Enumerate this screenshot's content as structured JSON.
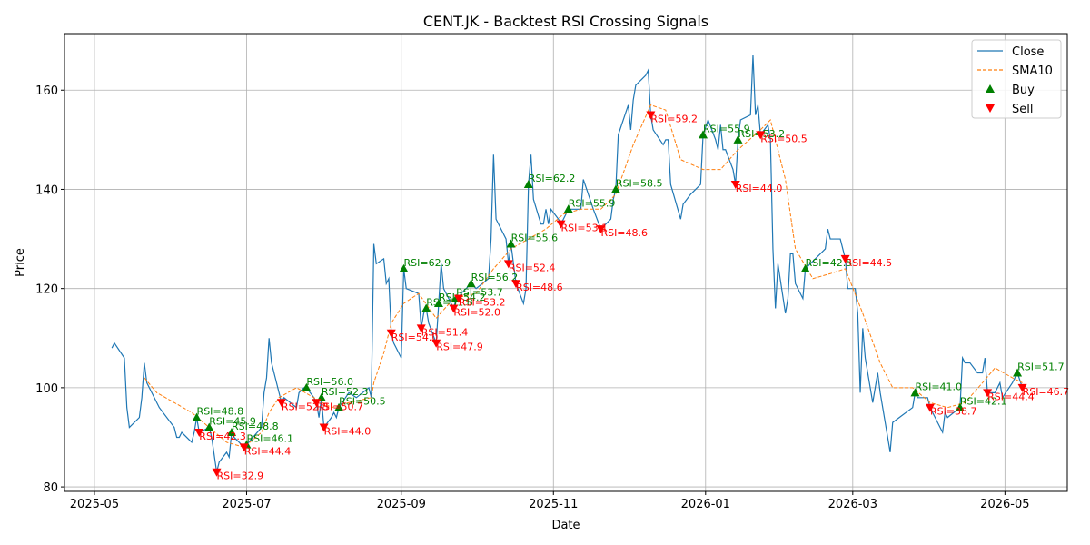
{
  "chart_data": {
    "type": "line",
    "title": "CENT.JK - Backtest RSI Crossing Signals",
    "x_label": "Date",
    "y_label": "Price",
    "xlim": [
      "2025-04-19",
      "2026-05-26"
    ],
    "xticks": [
      "2025-05",
      "2025-07",
      "2025-09",
      "2025-11",
      "2026-01",
      "2026-03",
      "2026-05"
    ],
    "ylim": [
      79.1,
      171.4
    ],
    "yticks": [
      80,
      100,
      120,
      140,
      160
    ],
    "grid": true,
    "legend": "upper right",
    "series": [
      {
        "name": "Close",
        "color": "#1f77b4",
        "style": "solid",
        "x": [
          "2025-05-08",
          "2025-05-09",
          "2025-05-13",
          "2025-05-14",
          "2025-05-15",
          "2025-05-19",
          "2025-05-20",
          "2025-05-21",
          "2025-05-22",
          "2025-05-27",
          "2025-06-02",
          "2025-06-03",
          "2025-06-04",
          "2025-06-05",
          "2025-06-09",
          "2025-06-10",
          "2025-06-11",
          "2025-06-12",
          "2025-06-16",
          "2025-06-17",
          "2025-06-19",
          "2025-06-20",
          "2025-06-23",
          "2025-06-24",
          "2025-06-25",
          "2025-06-26",
          "2025-06-30",
          "2025-07-01",
          "2025-07-07",
          "2025-07-08",
          "2025-07-09",
          "2025-07-10",
          "2025-07-11",
          "2025-07-14",
          "2025-07-15",
          "2025-07-16",
          "2025-07-21",
          "2025-07-22",
          "2025-07-24",
          "2025-07-25",
          "2025-07-28",
          "2025-07-29",
          "2025-07-30",
          "2025-07-31",
          "2025-08-01",
          "2025-08-04",
          "2025-08-05",
          "2025-08-06",
          "2025-08-07",
          "2025-08-11",
          "2025-08-14",
          "2025-08-19",
          "2025-08-20",
          "2025-08-21",
          "2025-08-22",
          "2025-08-25",
          "2025-08-26",
          "2025-08-27",
          "2025-08-28",
          "2025-08-29",
          "2025-09-01",
          "2025-09-02",
          "2025-09-03",
          "2025-09-08",
          "2025-09-09",
          "2025-09-10",
          "2025-09-11",
          "2025-09-12",
          "2025-09-15",
          "2025-09-16",
          "2025-09-17",
          "2025-09-18",
          "2025-09-19",
          "2025-09-22",
          "2025-09-23",
          "2025-09-24",
          "2025-09-25",
          "2025-09-29",
          "2025-10-01",
          "2025-10-06",
          "2025-10-07",
          "2025-10-08",
          "2025-10-09",
          "2025-10-13",
          "2025-10-14",
          "2025-10-15",
          "2025-10-17",
          "2025-10-20",
          "2025-10-21",
          "2025-10-22",
          "2025-10-23",
          "2025-10-24",
          "2025-10-27",
          "2025-10-28",
          "2025-10-29",
          "2025-10-30",
          "2025-10-31",
          "2025-11-03",
          "2025-11-04",
          "2025-11-05",
          "2025-11-07",
          "2025-11-11",
          "2025-11-12",
          "2025-11-13",
          "2025-11-17",
          "2025-11-20",
          "2025-11-24",
          "2025-11-25",
          "2025-11-26",
          "2025-11-27",
          "2025-12-01",
          "2025-12-02",
          "2025-12-03",
          "2025-12-04",
          "2025-12-08",
          "2025-12-09",
          "2025-12-10",
          "2025-12-11",
          "2025-12-15",
          "2025-12-16",
          "2025-12-17",
          "2025-12-18",
          "2025-12-22",
          "2025-12-23",
          "2025-12-26",
          "2025-12-30",
          "2025-12-31",
          "2026-01-02",
          "2026-01-05",
          "2026-01-06",
          "2026-01-07",
          "2026-01-08",
          "2026-01-09",
          "2026-01-12",
          "2026-01-13",
          "2026-01-14",
          "2026-01-15",
          "2026-01-19",
          "2026-01-20",
          "2026-01-21",
          "2026-01-22",
          "2026-01-23",
          "2026-01-26",
          "2026-01-27",
          "2026-01-28",
          "2026-01-29",
          "2026-01-30",
          "2026-02-02",
          "2026-02-03",
          "2026-02-04",
          "2026-02-05",
          "2026-02-06",
          "2026-02-09",
          "2026-02-10",
          "2026-02-16",
          "2026-02-18",
          "2026-02-19",
          "2026-02-20",
          "2026-02-24",
          "2026-02-26",
          "2026-02-27",
          "2026-03-02",
          "2026-03-03",
          "2026-03-04",
          "2026-03-05",
          "2026-03-06",
          "2026-03-09",
          "2026-03-11",
          "2026-03-12",
          "2026-03-16",
          "2026-03-17",
          "2026-03-25",
          "2026-03-26",
          "2026-03-27",
          "2026-03-31",
          "2026-04-01",
          "2026-04-06",
          "2026-04-07",
          "2026-04-08",
          "2026-04-13",
          "2026-04-14",
          "2026-04-15",
          "2026-04-17",
          "2026-04-20",
          "2026-04-22",
          "2026-04-23",
          "2026-04-24",
          "2026-04-27",
          "2026-04-29",
          "2026-04-30",
          "2026-05-04",
          "2026-05-06",
          "2026-05-08"
        ],
        "values": [
          108,
          109,
          106,
          96,
          92,
          94,
          98,
          105,
          101,
          96,
          92,
          90,
          90,
          91,
          89,
          91,
          94,
          91,
          92,
          90,
          83,
          85,
          87,
          86,
          91,
          90,
          88,
          88.5,
          92,
          99,
          102,
          110,
          105,
          99,
          97,
          98,
          96,
          99,
          100,
          100,
          98,
          97,
          94,
          98,
          92,
          94,
          95,
          94,
          96,
          99,
          98,
          100,
          98,
          129,
          125,
          126,
          121,
          122,
          111,
          109,
          106,
          124,
          120,
          119,
          112,
          115,
          116,
          113,
          109,
          117,
          125,
          120,
          119,
          116,
          118,
          118,
          119,
          121,
          120,
          122,
          130,
          147,
          134,
          130,
          125,
          129,
          121,
          117,
          120,
          141,
          147,
          138,
          133,
          133,
          136,
          133,
          136,
          134,
          133,
          134,
          136,
          136,
          136,
          142,
          136,
          132,
          134,
          138,
          140,
          151,
          157,
          152,
          158,
          161,
          163,
          164,
          155,
          152,
          149,
          150,
          150,
          141,
          134,
          137,
          139,
          141,
          151,
          154,
          150,
          148,
          153,
          148,
          148,
          144,
          141,
          150,
          154,
          155,
          167,
          155,
          157,
          151,
          153,
          150,
          128,
          116,
          125,
          115,
          118,
          127,
          127,
          121,
          118,
          124,
          127,
          128,
          132,
          130,
          130,
          126,
          120,
          120,
          115,
          99,
          112,
          106,
          97,
          103,
          99,
          87,
          93,
          96,
          99,
          98,
          98,
          96,
          91,
          95,
          94,
          96,
          106,
          105,
          105,
          103,
          103,
          106,
          99,
          99,
          101,
          98,
          101,
          103,
          100
        ]
      },
      {
        "name": "SMA10",
        "color": "#ff7f0e",
        "style": "dashed",
        "x": [
          "2025-05-21",
          "2025-05-26",
          "2025-06-02",
          "2025-06-09",
          "2025-06-16",
          "2025-06-23",
          "2025-06-30",
          "2025-07-07",
          "2025-07-10",
          "2025-07-14",
          "2025-07-21",
          "2025-07-28",
          "2025-08-04",
          "2025-08-11",
          "2025-08-20",
          "2025-08-21",
          "2025-08-25",
          "2025-08-28",
          "2025-09-02",
          "2025-09-08",
          "2025-09-15",
          "2025-09-22",
          "2025-10-01",
          "2025-10-08",
          "2025-10-15",
          "2025-10-22",
          "2025-10-29",
          "2025-11-05",
          "2025-11-12",
          "2025-11-20",
          "2025-11-26",
          "2025-12-03",
          "2025-12-10",
          "2025-12-16",
          "2025-12-22",
          "2025-12-31",
          "2026-01-07",
          "2026-01-14",
          "2026-01-23",
          "2026-01-27",
          "2026-02-02",
          "2026-02-06",
          "2026-02-13",
          "2026-02-20",
          "2026-02-26",
          "2026-03-05",
          "2026-03-12",
          "2026-03-17",
          "2026-03-25",
          "2026-04-01",
          "2026-04-08",
          "2026-04-15",
          "2026-04-22",
          "2026-04-27",
          "2026-05-04",
          "2026-05-08"
        ],
        "values": [
          102,
          99,
          97,
          95,
          92,
          89,
          88,
          91,
          95,
          98,
          100,
          98,
          96,
          97,
          98,
          101,
          107,
          113,
          117,
          119,
          114,
          118,
          119,
          124,
          128,
          130,
          132,
          135,
          136,
          136,
          139,
          149,
          157,
          156,
          146,
          144,
          144,
          148,
          152,
          154,
          142,
          128,
          122,
          123,
          124,
          115,
          105,
          100,
          100,
          97,
          96,
          97,
          101,
          104,
          102,
          101
        ]
      },
      {
        "name": "Buy",
        "color": "#008000",
        "marker": "up",
        "x": [
          "2025-06-11",
          "2025-06-16",
          "2025-06-25",
          "2025-07-01",
          "2025-07-25",
          "2025-07-31",
          "2025-08-07",
          "2025-09-02",
          "2025-09-11",
          "2025-09-16",
          "2025-09-23",
          "2025-09-29",
          "2025-10-15",
          "2025-10-22",
          "2025-11-07",
          "2025-11-26",
          "2025-12-31",
          "2026-01-14",
          "2026-02-10",
          "2026-03-26",
          "2026-04-13",
          "2026-05-06"
        ],
        "values": [
          94,
          92,
          91,
          88.5,
          100,
          98,
          96,
          124,
          116,
          117,
          118,
          121,
          129,
          141,
          136,
          140,
          151,
          150,
          124,
          99,
          96,
          103
        ],
        "labels": [
          "RSI=48.8",
          "RSI=45.9",
          "RSI=48.8",
          "RSI=46.1",
          "RSI=56.0",
          "RSI=52.3",
          "RSI=50.5",
          "RSI=62.9",
          "RSI=51.8",
          "RSI=54.2",
          "RSI=53.7",
          "RSI=56.2",
          "RSI=55.6",
          "RSI=62.2",
          "RSI=55.9",
          "RSI=58.5",
          "RSI=55.9",
          "RSI=53.2",
          "RSI=42.5",
          "RSI=41.0",
          "RSI=42.1",
          "RSI=51.7"
        ]
      },
      {
        "name": "Sell",
        "color": "#ff0000",
        "marker": "down",
        "x": [
          "2025-06-12",
          "2025-06-19",
          "2025-06-30",
          "2025-07-15",
          "2025-07-29",
          "2025-08-01",
          "2025-08-28",
          "2025-09-09",
          "2025-09-15",
          "2025-09-22",
          "2025-09-24",
          "2025-10-14",
          "2025-10-17",
          "2025-11-04",
          "2025-11-20",
          "2025-12-10",
          "2026-01-13",
          "2026-01-23",
          "2026-02-26",
          "2026-04-01",
          "2026-04-24",
          "2026-05-08"
        ],
        "values": [
          91,
          83,
          88,
          97,
          97,
          92,
          111,
          112,
          109,
          116,
          118,
          125,
          121,
          133,
          132,
          155,
          141,
          151,
          126,
          96,
          99,
          100
        ],
        "labels": [
          "RSI=42.3",
          "RSI=32.9",
          "RSI=44.4",
          "RSI=52.8",
          "RSI=50.7",
          "RSI=44.0",
          "RSI=54.0",
          "RSI=51.4",
          "RSI=47.9",
          "RSI=52.0",
          "RSI=53.2",
          "RSI=52.4",
          "RSI=48.6",
          "RSI=53.1",
          "RSI=48.6",
          "RSI=59.2",
          "RSI=44.0",
          "RSI=50.5",
          "RSI=44.5",
          "RSI=38.7",
          "RSI=44.4",
          "RSI=46.7"
        ]
      }
    ]
  }
}
